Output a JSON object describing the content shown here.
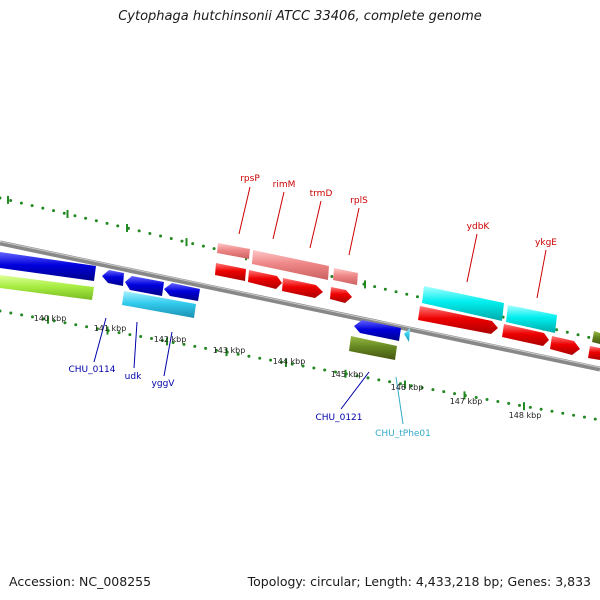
{
  "title": "Cytophaga hutchinsonii ATCC 33406, complete genome",
  "footer": {
    "accession": "Accession: NC_008255",
    "summary": "Topology: circular; Length: 4,433,218 bp; Genes: 3,833"
  },
  "scale_ticks": [
    "140 kbp",
    "141 kbp",
    "142 kbp",
    "143 kbp",
    "144 kbp",
    "145 kbp",
    "146 kbp",
    "147 kbp",
    "148 kbp"
  ],
  "forward_labels": [
    "rpsP",
    "rimM",
    "trmD",
    "rplS",
    "ydbK",
    "ykgE"
  ],
  "reverse_labels": [
    "CHU_0114",
    "udk",
    "yggV",
    "CHU_0121",
    "CHU_tPhe01"
  ],
  "colors": {
    "forward_label": "#cc0000",
    "reverse_label": "#0000aa",
    "trna_label": "#33aacc",
    "backbone": "#888888",
    "tick": "#228822",
    "cds_red": "#ee0000",
    "rrna_pink": "#ee8888",
    "cds_blue": "#0000dd",
    "misc_cyan": "#33ccee",
    "cyan_bright": "#00eeee",
    "lime": "#aaee44",
    "olive": "#668822"
  }
}
